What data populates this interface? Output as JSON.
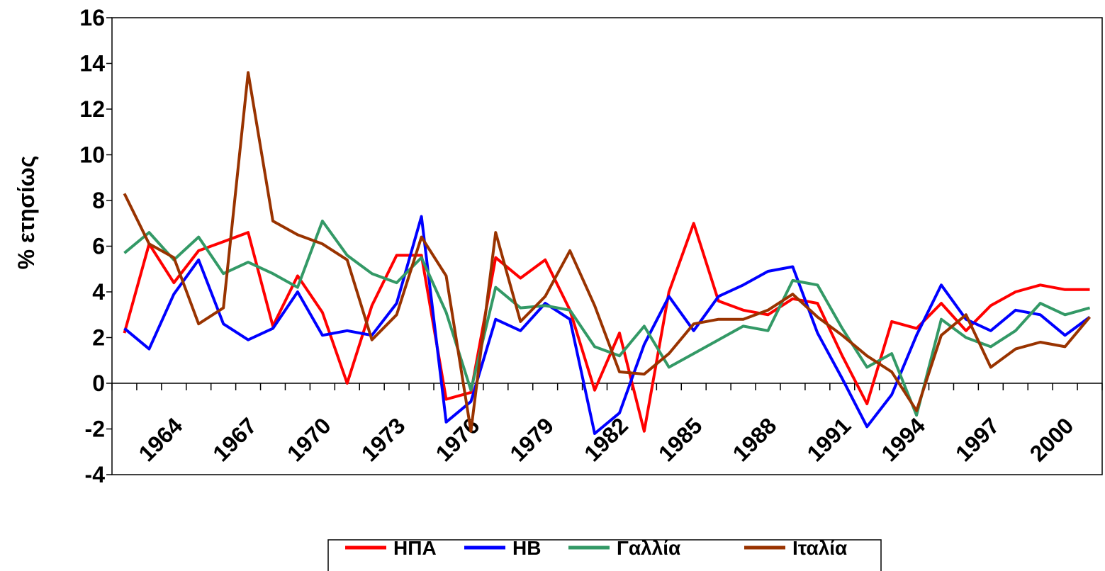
{
  "chart_data": {
    "type": "line",
    "y_label": "% ετησίως",
    "categories": [
      null,
      null,
      "1964",
      null,
      null,
      "1967",
      null,
      null,
      "1970",
      null,
      null,
      "1973",
      null,
      null,
      "1976",
      null,
      null,
      "1979",
      null,
      null,
      "1982",
      null,
      null,
      "1985",
      null,
      null,
      "1988",
      null,
      null,
      "1991",
      null,
      null,
      "1994",
      null,
      null,
      "1997",
      null,
      null,
      "2000",
      null
    ],
    "series": [
      {
        "name": "ΗΠΑ",
        "color": "#ff0000",
        "values": [
          2.2,
          6.1,
          4.4,
          5.8,
          6.2,
          6.6,
          2.5,
          4.7,
          3.1,
          0.0,
          3.4,
          5.6,
          5.6,
          -0.7,
          -0.4,
          5.5,
          4.6,
          5.4,
          3.2,
          -0.3,
          2.2,
          -2.1,
          4.0,
          7.0,
          3.6,
          3.2,
          3.0,
          3.7,
          3.5,
          1.2,
          -0.9,
          2.7,
          2.4,
          3.5,
          2.3,
          3.4,
          4.0,
          4.3,
          4.1,
          4.1
        ]
      },
      {
        "name": "ΗΒ",
        "color": "#0000ff",
        "values": [
          2.4,
          1.5,
          3.9,
          5.4,
          2.6,
          1.9,
          2.4,
          4.0,
          2.1,
          2.3,
          2.1,
          3.5,
          7.3,
          -1.7,
          -0.8,
          2.8,
          2.3,
          3.5,
          2.8,
          -2.2,
          -1.3,
          1.7,
          3.8,
          2.3,
          3.8,
          4.3,
          4.9,
          5.1,
          2.2,
          0.2,
          -1.9,
          -0.5,
          2.1,
          4.3,
          2.8,
          2.3,
          3.2,
          3.0,
          2.1,
          2.9
        ]
      },
      {
        "name": "Γαλλία",
        "color": "#339966",
        "values": [
          5.7,
          6.6,
          5.4,
          6.4,
          4.8,
          5.3,
          4.8,
          4.2,
          7.1,
          5.6,
          4.8,
          4.4,
          5.5,
          3.1,
          -0.3,
          4.2,
          3.3,
          3.4,
          3.2,
          1.6,
          1.2,
          2.5,
          0.7,
          1.3,
          1.9,
          2.5,
          2.3,
          4.5,
          4.3,
          2.4,
          0.7,
          1.3,
          -1.4,
          2.8,
          2.0,
          1.6,
          2.3,
          3.5,
          3.0,
          3.3
        ]
      },
      {
        "name": "Ιταλία",
        "color": "#993300",
        "values": [
          8.3,
          6.1,
          5.5,
          2.6,
          3.3,
          13.6,
          7.1,
          6.5,
          6.1,
          5.4,
          1.9,
          3.0,
          6.4,
          4.7,
          -2.1,
          6.6,
          2.7,
          3.8,
          5.8,
          3.4,
          0.5,
          0.4,
          1.3,
          2.6,
          2.8,
          2.8,
          3.2,
          3.9,
          2.9,
          2.1,
          1.2,
          0.5,
          -1.2,
          2.1,
          3.0,
          0.7,
          1.5,
          1.8,
          1.6,
          2.9
        ]
      }
    ],
    "ylim": [
      -4,
      16
    ],
    "yticks": [
      -4,
      -2,
      0,
      2,
      4,
      6,
      8,
      10,
      12,
      14,
      16
    ],
    "grid": false,
    "legend": "bottom"
  }
}
